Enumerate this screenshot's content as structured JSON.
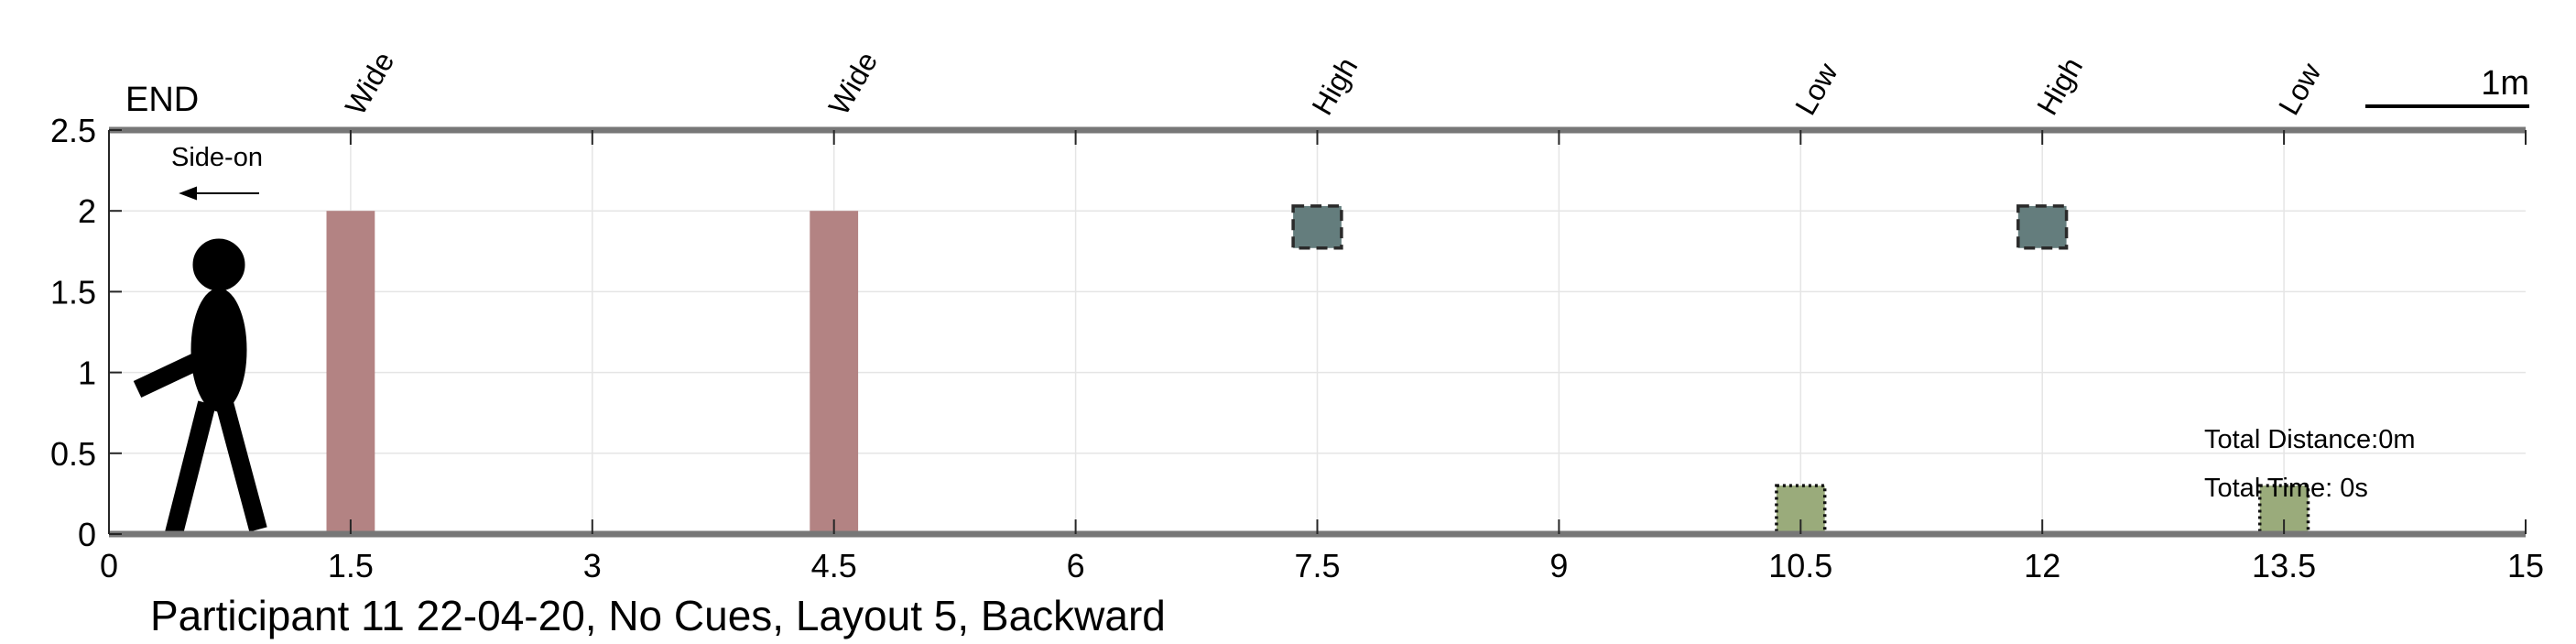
{
  "chart_data": {
    "type": "scatter",
    "xlim": [
      0,
      15
    ],
    "ylim": [
      0,
      2.5
    ],
    "xticks": [
      0,
      1.5,
      3,
      4.5,
      6,
      7.5,
      9,
      10.5,
      12,
      13.5,
      15
    ],
    "xtick_labels": [
      "0",
      "1.5",
      "3",
      "4.5",
      "6",
      "7.5",
      "9",
      "10.5",
      "12",
      "13.5",
      "15"
    ],
    "yticks": [
      0,
      0.5,
      1,
      1.5,
      2,
      2.5
    ],
    "ytick_labels": [
      "0",
      "0.5",
      "1",
      "1.5",
      "2",
      "2.5"
    ],
    "grid": true,
    "top_labels": [
      {
        "x": 1.5,
        "text": "Wide"
      },
      {
        "x": 4.5,
        "text": "Wide"
      },
      {
        "x": 7.5,
        "text": "High"
      },
      {
        "x": 10.5,
        "text": "Low"
      },
      {
        "x": 12,
        "text": "High"
      },
      {
        "x": 13.5,
        "text": "Low"
      }
    ],
    "obstacles": [
      {
        "kind": "wide",
        "x": 1.5,
        "y_from": 0,
        "y_to": 2,
        "width": 0.3,
        "color": "#b38383"
      },
      {
        "kind": "wide",
        "x": 4.5,
        "y_from": 0,
        "y_to": 2,
        "width": 0.3,
        "color": "#b38383"
      },
      {
        "kind": "high",
        "x": 7.5,
        "y_from": 1.77,
        "y_to": 2.03,
        "width": 0.3,
        "color": "#647d7d"
      },
      {
        "kind": "high",
        "x": 12,
        "y_from": 1.77,
        "y_to": 2.03,
        "width": 0.3,
        "color": "#647d7d"
      },
      {
        "kind": "low",
        "x": 10.5,
        "y_from": 0,
        "y_to": 0.3,
        "width": 0.3,
        "color": "#9aab7b"
      },
      {
        "kind": "low",
        "x": 13.5,
        "y_from": 0,
        "y_to": 0.3,
        "width": 0.3,
        "color": "#9aab7b"
      }
    ],
    "end_label": "END",
    "scale_label": "1m",
    "view_label": "Side-on",
    "stats": {
      "distance": "Total Distance:0m",
      "time": "Total Time: 0s"
    },
    "title": "Participant 11 22-04-20, No Cues, Layout 5, Backward"
  }
}
